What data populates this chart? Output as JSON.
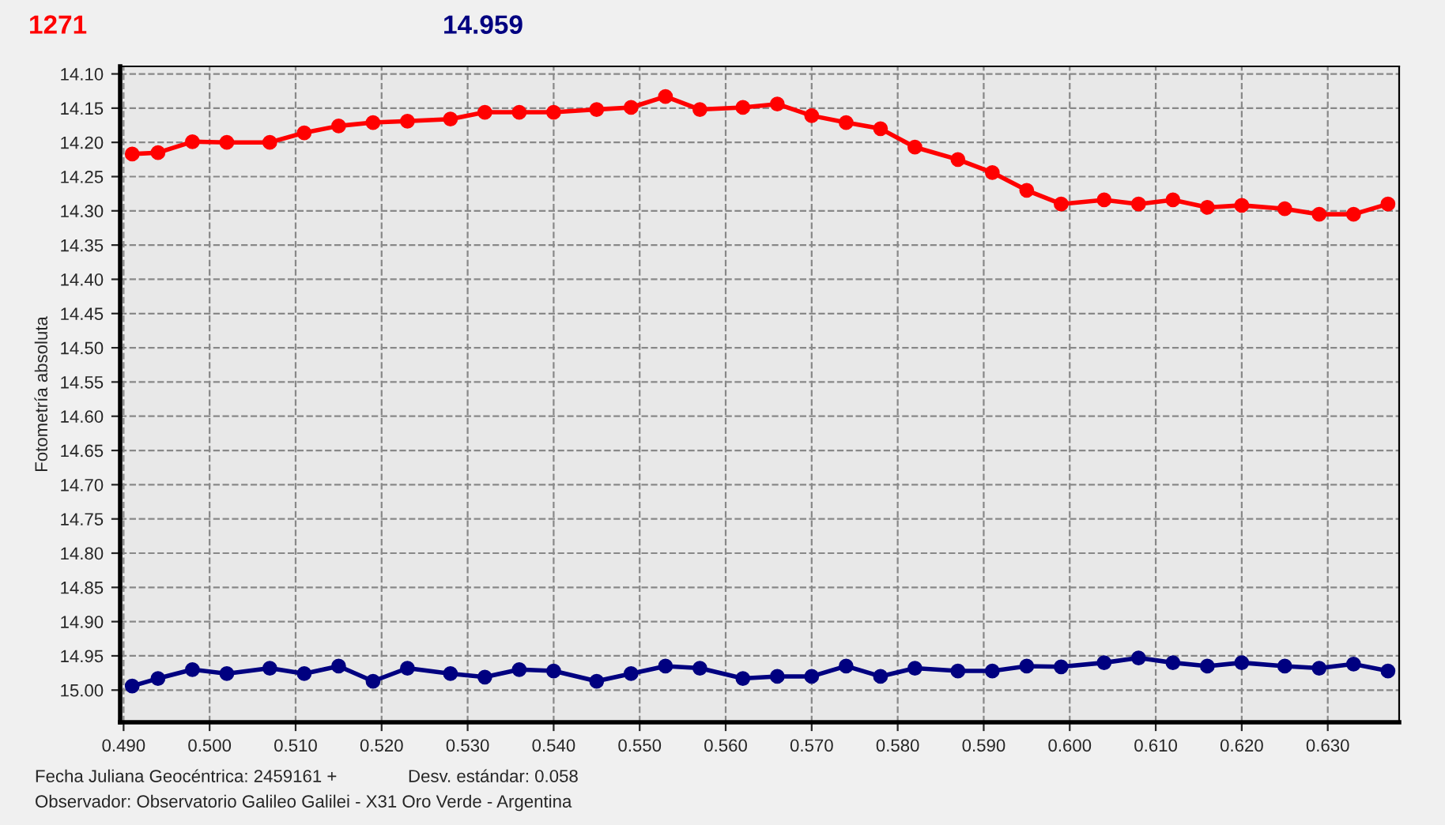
{
  "chart_data": {
    "type": "line",
    "title": "1271",
    "subtitle": "14.959",
    "ylabel": "Fotometría absoluta",
    "annotations": [
      "Fecha Juliana Geocéntrica: 2459161 +",
      "Desv. estándar: 0.058",
      "Observador: Observatorio Galileo Galilei - X31 Oro Verde - Argentina"
    ],
    "x": [
      0.491,
      0.494,
      0.498,
      0.502,
      0.507,
      0.511,
      0.515,
      0.519,
      0.523,
      0.528,
      0.532,
      0.536,
      0.54,
      0.545,
      0.549,
      0.553,
      0.557,
      0.562,
      0.566,
      0.57,
      0.574,
      0.578,
      0.582,
      0.587,
      0.591,
      0.595,
      0.599,
      0.604,
      0.608,
      0.612,
      0.616,
      0.62,
      0.625,
      0.629,
      0.633,
      0.637
    ],
    "series": [
      {
        "color": "#ff0000",
        "values": [
          14.217,
          14.215,
          14.199,
          14.2,
          14.2,
          14.186,
          14.176,
          14.171,
          14.169,
          14.166,
          14.156,
          14.156,
          14.156,
          14.152,
          14.149,
          14.133,
          14.152,
          14.149,
          14.144,
          14.161,
          14.171,
          14.18,
          14.207,
          14.225,
          14.244,
          14.27,
          14.29,
          14.284,
          14.29,
          14.284,
          14.295,
          14.292,
          14.297,
          14.305,
          14.305,
          14.29
        ]
      },
      {
        "color": "#000080",
        "values": [
          14.994,
          14.983,
          14.97,
          14.976,
          14.968,
          14.976,
          14.965,
          14.987,
          14.968,
          14.976,
          14.981,
          14.97,
          14.972,
          14.987,
          14.976,
          14.965,
          14.968,
          14.983,
          14.98,
          14.98,
          14.965,
          14.98,
          14.968,
          14.972,
          14.972,
          14.965,
          14.966,
          14.96,
          14.953,
          14.96,
          14.965,
          14.96,
          14.965,
          14.968,
          14.962,
          14.972
        ]
      }
    ],
    "xlim": [
      0.4896,
      0.6383
    ],
    "ylim": [
      15.047,
      14.089
    ],
    "xticks": [
      {
        "value": 0.49,
        "label": "0.490"
      },
      {
        "value": 0.5,
        "label": "0.500"
      },
      {
        "value": 0.51,
        "label": "0.510"
      },
      {
        "value": 0.52,
        "label": "0.520"
      },
      {
        "value": 0.53,
        "label": "0.530"
      },
      {
        "value": 0.54,
        "label": "0.540"
      },
      {
        "value": 0.55,
        "label": "0.550"
      },
      {
        "value": 0.56,
        "label": "0.560"
      },
      {
        "value": 0.57,
        "label": "0.570"
      },
      {
        "value": 0.58,
        "label": "0.580"
      },
      {
        "value": 0.59,
        "label": "0.590"
      },
      {
        "value": 0.6,
        "label": "0.600"
      },
      {
        "value": 0.61,
        "label": "0.610"
      },
      {
        "value": 0.62,
        "label": "0.620"
      },
      {
        "value": 0.63,
        "label": "0.630"
      }
    ],
    "yticks": [
      {
        "value": 14.1,
        "label": "14.10"
      },
      {
        "value": 14.15,
        "label": "14.15"
      },
      {
        "value": 14.2,
        "label": "14.20"
      },
      {
        "value": 14.25,
        "label": "14.25"
      },
      {
        "value": 14.3,
        "label": "14.30"
      },
      {
        "value": 14.35,
        "label": "14.35"
      },
      {
        "value": 14.4,
        "label": "14.40"
      },
      {
        "value": 14.45,
        "label": "14.45"
      },
      {
        "value": 14.5,
        "label": "14.50"
      },
      {
        "value": 14.55,
        "label": "14.55"
      },
      {
        "value": 14.6,
        "label": "14.60"
      },
      {
        "value": 14.65,
        "label": "14.65"
      },
      {
        "value": 14.7,
        "label": "14.70"
      },
      {
        "value": 14.75,
        "label": "14.75"
      },
      {
        "value": 14.8,
        "label": "14.80"
      },
      {
        "value": 14.85,
        "label": "14.85"
      },
      {
        "value": 14.9,
        "label": "14.90"
      },
      {
        "value": 14.95,
        "label": "14.95"
      },
      {
        "value": 15.0,
        "label": "15.00"
      }
    ],
    "grid": true,
    "marker": "circle",
    "line_style": "solid",
    "legend": false
  }
}
